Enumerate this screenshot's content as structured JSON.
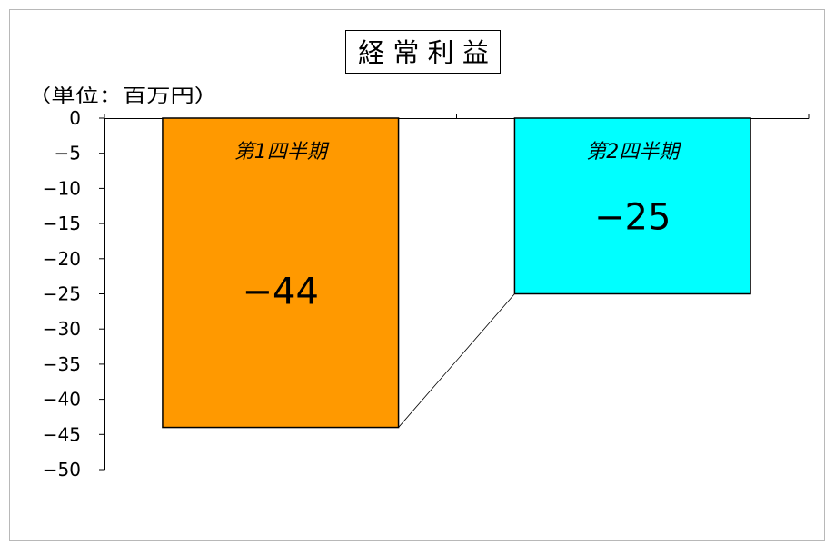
{
  "chart_data": {
    "type": "bar",
    "title": "経 常 利 益",
    "unit_label": "（単位：百万円）",
    "categories": [
      "第1四半期",
      "第2四半期"
    ],
    "values": [
      -44,
      -25
    ],
    "value_labels": [
      "−44",
      "−25"
    ],
    "colors": [
      "#FF9900",
      "#00FFFF"
    ],
    "ylim": [
      -50,
      0
    ],
    "ytick_step": 5,
    "yticks": [
      "0",
      "−5",
      "−10",
      "−15",
      "−20",
      "−25",
      "−30",
      "−35",
      "−40",
      "−45",
      "−50"
    ],
    "grid": false,
    "legend": "none",
    "connector_lines": true
  }
}
